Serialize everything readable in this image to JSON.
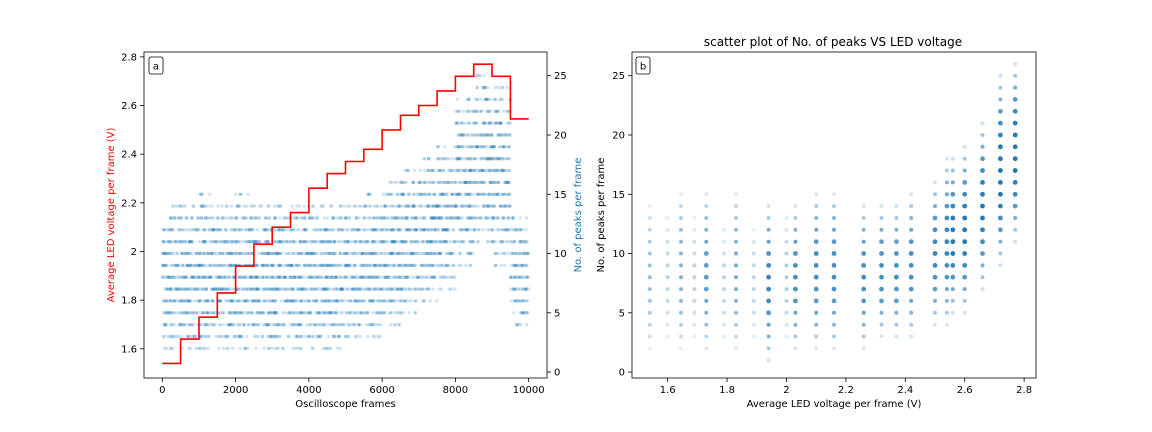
{
  "chart_data": [
    {
      "type": "scatter",
      "panel_label": "a",
      "title": "",
      "xlabel": "Oscilloscope frames",
      "ylabel_left": "Average LED voltage per frame (V)",
      "ylabel_right": "No. of peaks per frame",
      "ylabel_left_color": "#ff0000",
      "ylabel_right_color": "#1f77b4",
      "xlim": [
        -500,
        10500
      ],
      "ylim_left": [
        1.48,
        2.82
      ],
      "ylim_right": [
        -0.5,
        27
      ],
      "xticks": [
        0,
        2000,
        4000,
        6000,
        8000,
        10000
      ],
      "yticks_left": [
        1.6,
        1.8,
        2.0,
        2.2,
        2.4,
        2.6,
        2.8
      ],
      "yticks_right": [
        0,
        5,
        10,
        15,
        20,
        25
      ],
      "grid": false,
      "voltage_line": {
        "color": "#ff0000",
        "steps": [
          {
            "x_start": 0,
            "x_end": 500,
            "v": 1.54
          },
          {
            "x_start": 500,
            "x_end": 1000,
            "v": 1.64
          },
          {
            "x_start": 1000,
            "x_end": 1500,
            "v": 1.73
          },
          {
            "x_start": 1500,
            "x_end": 2000,
            "v": 1.83
          },
          {
            "x_start": 2000,
            "x_end": 2500,
            "v": 1.94
          },
          {
            "x_start": 2500,
            "x_end": 3000,
            "v": 2.03
          },
          {
            "x_start": 3000,
            "x_end": 3500,
            "v": 2.1
          },
          {
            "x_start": 3500,
            "x_end": 4000,
            "v": 2.16
          },
          {
            "x_start": 4000,
            "x_end": 4500,
            "v": 2.26
          },
          {
            "x_start": 4500,
            "x_end": 5000,
            "v": 2.32
          },
          {
            "x_start": 5000,
            "x_end": 5500,
            "v": 2.37
          },
          {
            "x_start": 5500,
            "x_end": 6000,
            "v": 2.42
          },
          {
            "x_start": 6000,
            "x_end": 6500,
            "v": 2.5
          },
          {
            "x_start": 6500,
            "x_end": 7000,
            "v": 2.56
          },
          {
            "x_start": 7000,
            "x_end": 7500,
            "v": 2.6
          },
          {
            "x_start": 7500,
            "x_end": 8000,
            "v": 2.66
          },
          {
            "x_start": 8000,
            "x_end": 8500,
            "v": 2.72
          },
          {
            "x_start": 8500,
            "x_end": 9000,
            "v": 2.77
          },
          {
            "x_start": 9000,
            "x_end": 9500,
            "v": 2.72
          },
          {
            "x_start": 9500,
            "x_end": 10000,
            "v": 2.545
          }
        ]
      },
      "peaks_scatter": {
        "color": "#1f77b4",
        "opacity": 0.2,
        "bands": [
          {
            "x_start": 0,
            "x_end": 500,
            "peaks": [
              2,
              3,
              4,
              5,
              6,
              7,
              8,
              9,
              10,
              11,
              12,
              13,
              14
            ]
          },
          {
            "x_start": 500,
            "x_end": 1000,
            "peaks": [
              2,
              3,
              4,
              5,
              6,
              7,
              8,
              9,
              10,
              11,
              12,
              13,
              14
            ]
          },
          {
            "x_start": 1000,
            "x_end": 1500,
            "peaks": [
              2,
              3,
              4,
              5,
              6,
              7,
              8,
              9,
              10,
              11,
              12,
              13,
              14,
              15
            ]
          },
          {
            "x_start": 1500,
            "x_end": 2000,
            "peaks": [
              2,
              3,
              4,
              5,
              6,
              7,
              8,
              9,
              10,
              11,
              12,
              13,
              14
            ]
          },
          {
            "x_start": 2000,
            "x_end": 2500,
            "peaks": [
              2,
              3,
              4,
              5,
              6,
              7,
              8,
              9,
              10,
              11,
              12,
              13,
              14,
              15
            ]
          },
          {
            "x_start": 2500,
            "x_end": 3000,
            "peaks": [
              2,
              3,
              4,
              5,
              6,
              7,
              8,
              9,
              10,
              11,
              12,
              13,
              14
            ]
          },
          {
            "x_start": 3000,
            "x_end": 3500,
            "peaks": [
              2,
              3,
              4,
              5,
              6,
              7,
              8,
              9,
              10,
              11,
              12,
              13,
              14
            ]
          },
          {
            "x_start": 3500,
            "x_end": 4000,
            "peaks": [
              2,
              3,
              4,
              5,
              6,
              7,
              8,
              9,
              10,
              11,
              12,
              13,
              14
            ]
          },
          {
            "x_start": 4000,
            "x_end": 4500,
            "peaks": [
              2,
              3,
              4,
              5,
              6,
              7,
              8,
              9,
              10,
              11,
              12,
              13,
              14
            ]
          },
          {
            "x_start": 4500,
            "x_end": 5000,
            "peaks": [
              2,
              3,
              4,
              5,
              6,
              7,
              8,
              9,
              10,
              11,
              12,
              13,
              14
            ]
          },
          {
            "x_start": 5000,
            "x_end": 5500,
            "peaks": [
              3,
              4,
              5,
              6,
              7,
              8,
              9,
              10,
              11,
              12,
              13,
              14
            ]
          },
          {
            "x_start": 5500,
            "x_end": 6000,
            "peaks": [
              3,
              4,
              5,
              6,
              7,
              8,
              9,
              10,
              11,
              12,
              13,
              14,
              15
            ]
          },
          {
            "x_start": 6000,
            "x_end": 6500,
            "peaks": [
              4,
              5,
              6,
              7,
              8,
              9,
              10,
              11,
              12,
              13,
              14,
              15,
              16
            ]
          },
          {
            "x_start": 6500,
            "x_end": 7000,
            "peaks": [
              5,
              6,
              7,
              8,
              9,
              10,
              11,
              12,
              13,
              14,
              15,
              16,
              17
            ]
          },
          {
            "x_start": 7000,
            "x_end": 7500,
            "peaks": [
              6,
              7,
              8,
              9,
              10,
              11,
              12,
              13,
              14,
              15,
              16,
              17,
              18
            ]
          },
          {
            "x_start": 7500,
            "x_end": 8000,
            "peaks": [
              7,
              8,
              9,
              10,
              11,
              12,
              13,
              14,
              15,
              16,
              17,
              18,
              19
            ]
          },
          {
            "x_start": 8000,
            "x_end": 8500,
            "peaks": [
              9,
              10,
              11,
              12,
              13,
              14,
              15,
              16,
              17,
              18,
              19,
              20,
              21,
              22,
              23
            ]
          },
          {
            "x_start": 8500,
            "x_end": 9000,
            "peaks": [
              11,
              12,
              13,
              14,
              15,
              16,
              17,
              18,
              19,
              20,
              21,
              22,
              23,
              24,
              25
            ]
          },
          {
            "x_start": 9000,
            "x_end": 9500,
            "peaks": [
              9,
              10,
              11,
              12,
              13,
              14,
              15,
              16,
              17,
              18,
              19,
              20,
              21,
              22,
              23,
              24
            ]
          },
          {
            "x_start": 9500,
            "x_end": 10000,
            "peaks": [
              4,
              5,
              6,
              7,
              8,
              9,
              10,
              11,
              12,
              13
            ]
          }
        ]
      }
    },
    {
      "type": "scatter",
      "panel_label": "b",
      "title": "scatter plot of No. of peaks VS LED voltage",
      "xlabel": "Average LED voltage per frame (V)",
      "ylabel": "No. of peaks per frame",
      "xlim": [
        1.48,
        2.84
      ],
      "ylim": [
        -0.5,
        27
      ],
      "xticks": [
        1.6,
        1.8,
        2.0,
        2.2,
        2.4,
        2.6,
        2.8
      ],
      "yticks": [
        0,
        5,
        10,
        15,
        20,
        25
      ],
      "grid": false,
      "point_color": "#1f77b4",
      "columns": [
        {
          "v": 1.54,
          "peaks_min": 2,
          "peaks_max": 14,
          "strength": 0.45
        },
        {
          "v": 1.6,
          "peaks_min": 3,
          "peaks_max": 13,
          "strength": 0.3
        },
        {
          "v": 1.645,
          "peaks_min": 2,
          "peaks_max": 15,
          "strength": 0.55
        },
        {
          "v": 1.69,
          "peaks_min": 3,
          "peaks_max": 13,
          "strength": 0.3
        },
        {
          "v": 1.73,
          "peaks_min": 2,
          "peaks_max": 15,
          "strength": 0.7
        },
        {
          "v": 1.79,
          "peaks_min": 3,
          "peaks_max": 12,
          "strength": 0.3
        },
        {
          "v": 1.83,
          "peaks_min": 2,
          "peaks_max": 15,
          "strength": 0.6
        },
        {
          "v": 1.89,
          "peaks_min": 3,
          "peaks_max": 12,
          "strength": 0.3
        },
        {
          "v": 1.94,
          "peaks_min": 1,
          "peaks_max": 14,
          "strength": 0.85
        },
        {
          "v": 2.0,
          "peaks_min": 3,
          "peaks_max": 13,
          "strength": 0.35
        },
        {
          "v": 2.03,
          "peaks_min": 2,
          "peaks_max": 14,
          "strength": 0.8
        },
        {
          "v": 2.1,
          "peaks_min": 2,
          "peaks_max": 15,
          "strength": 0.8
        },
        {
          "v": 2.16,
          "peaks_min": 2,
          "peaks_max": 15,
          "strength": 0.8
        },
        {
          "v": 2.26,
          "peaks_min": 2,
          "peaks_max": 14,
          "strength": 0.8
        },
        {
          "v": 2.32,
          "peaks_min": 3,
          "peaks_max": 14,
          "strength": 0.8
        },
        {
          "v": 2.37,
          "peaks_min": 3,
          "peaks_max": 14,
          "strength": 0.8
        },
        {
          "v": 2.42,
          "peaks_min": 3,
          "peaks_max": 15,
          "strength": 0.8
        },
        {
          "v": 2.5,
          "peaks_min": 4,
          "peaks_max": 16,
          "strength": 0.85
        },
        {
          "v": 2.54,
          "peaks_min": 4,
          "peaks_max": 18,
          "strength": 0.85
        },
        {
          "v": 2.56,
          "peaks_min": 5,
          "peaks_max": 18,
          "strength": 0.95
        },
        {
          "v": 2.6,
          "peaks_min": 5,
          "peaks_max": 19,
          "strength": 0.95
        },
        {
          "v": 2.66,
          "peaks_min": 7,
          "peaks_max": 21,
          "strength": 0.95
        },
        {
          "v": 2.72,
          "peaks_min": 9,
          "peaks_max": 25,
          "strength": 1.0
        },
        {
          "v": 2.77,
          "peaks_min": 11,
          "peaks_max": 26,
          "strength": 1.0
        }
      ]
    }
  ]
}
